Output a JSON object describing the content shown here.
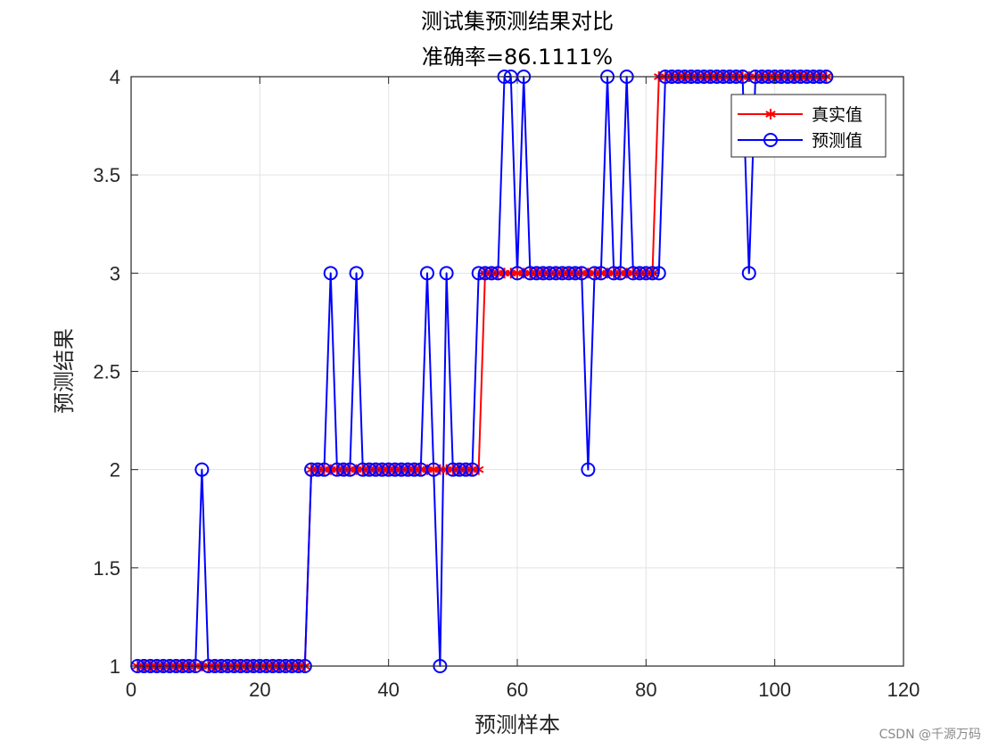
{
  "watermark": "CSDN @千源万码",
  "chart_data": {
    "type": "line",
    "title": "测试集预测结果对比",
    "subtitle": "准确率=86.1111%",
    "xlabel": "预测样本",
    "ylabel": "预测结果",
    "xlim": [
      0,
      120
    ],
    "ylim": [
      1,
      4
    ],
    "xticks": [
      0,
      20,
      40,
      60,
      80,
      100,
      120
    ],
    "yticks": [
      1,
      1.5,
      2,
      2.5,
      3,
      3.5,
      4
    ],
    "xtick_labels": [
      "0",
      "20",
      "40",
      "60",
      "80",
      "100",
      "120"
    ],
    "ytick_labels": [
      "1",
      "1.5",
      "2",
      "2.5",
      "3",
      "3.5",
      "4"
    ],
    "grid": true,
    "legend_position": "top-right",
    "x": [
      1,
      2,
      3,
      4,
      5,
      6,
      7,
      8,
      9,
      10,
      11,
      12,
      13,
      14,
      15,
      16,
      17,
      18,
      19,
      20,
      21,
      22,
      23,
      24,
      25,
      26,
      27,
      28,
      29,
      30,
      31,
      32,
      33,
      34,
      35,
      36,
      37,
      38,
      39,
      40,
      41,
      42,
      43,
      44,
      45,
      46,
      47,
      48,
      49,
      50,
      51,
      52,
      53,
      54,
      55,
      56,
      57,
      58,
      59,
      60,
      61,
      62,
      63,
      64,
      65,
      66,
      67,
      68,
      69,
      70,
      71,
      72,
      73,
      74,
      75,
      76,
      77,
      78,
      79,
      80,
      81,
      82,
      83,
      84,
      85,
      86,
      87,
      88,
      89,
      90,
      91,
      92,
      93,
      94,
      95,
      96,
      97,
      98,
      99,
      100,
      101,
      102,
      103,
      104,
      105,
      106,
      107,
      108
    ],
    "series": [
      {
        "name": "真实值",
        "color": "#ff0000",
        "marker": "asterisk",
        "values": [
          1,
          1,
          1,
          1,
          1,
          1,
          1,
          1,
          1,
          1,
          1,
          1,
          1,
          1,
          1,
          1,
          1,
          1,
          1,
          1,
          1,
          1,
          1,
          1,
          1,
          1,
          1,
          2,
          2,
          2,
          2,
          2,
          2,
          2,
          2,
          2,
          2,
          2,
          2,
          2,
          2,
          2,
          2,
          2,
          2,
          2,
          2,
          2,
          2,
          2,
          2,
          2,
          2,
          2,
          3,
          3,
          3,
          3,
          3,
          3,
          3,
          3,
          3,
          3,
          3,
          3,
          3,
          3,
          3,
          3,
          3,
          3,
          3,
          3,
          3,
          3,
          3,
          3,
          3,
          3,
          3,
          4,
          4,
          4,
          4,
          4,
          4,
          4,
          4,
          4,
          4,
          4,
          4,
          4,
          4,
          4,
          4,
          4,
          4,
          4,
          4,
          4,
          4,
          4,
          4,
          4,
          4,
          4
        ]
      },
      {
        "name": "预测值",
        "color": "#0000ff",
        "marker": "circle",
        "values": [
          1,
          1,
          1,
          1,
          1,
          1,
          1,
          1,
          1,
          1,
          2,
          1,
          1,
          1,
          1,
          1,
          1,
          1,
          1,
          1,
          1,
          1,
          1,
          1,
          1,
          1,
          1,
          2,
          2,
          2,
          3,
          2,
          2,
          2,
          3,
          2,
          2,
          2,
          2,
          2,
          2,
          2,
          2,
          2,
          2,
          3,
          2,
          1,
          3,
          2,
          2,
          2,
          2,
          3,
          3,
          3,
          3,
          4,
          4,
          3,
          4,
          3,
          3,
          3,
          3,
          3,
          3,
          3,
          3,
          3,
          2,
          3,
          3,
          4,
          3,
          3,
          4,
          3,
          3,
          3,
          3,
          3,
          4,
          4,
          4,
          4,
          4,
          4,
          4,
          4,
          4,
          4,
          4,
          4,
          4,
          3,
          4,
          4,
          4,
          4,
          4,
          4,
          4,
          4,
          4,
          4,
          4,
          4
        ]
      }
    ]
  }
}
